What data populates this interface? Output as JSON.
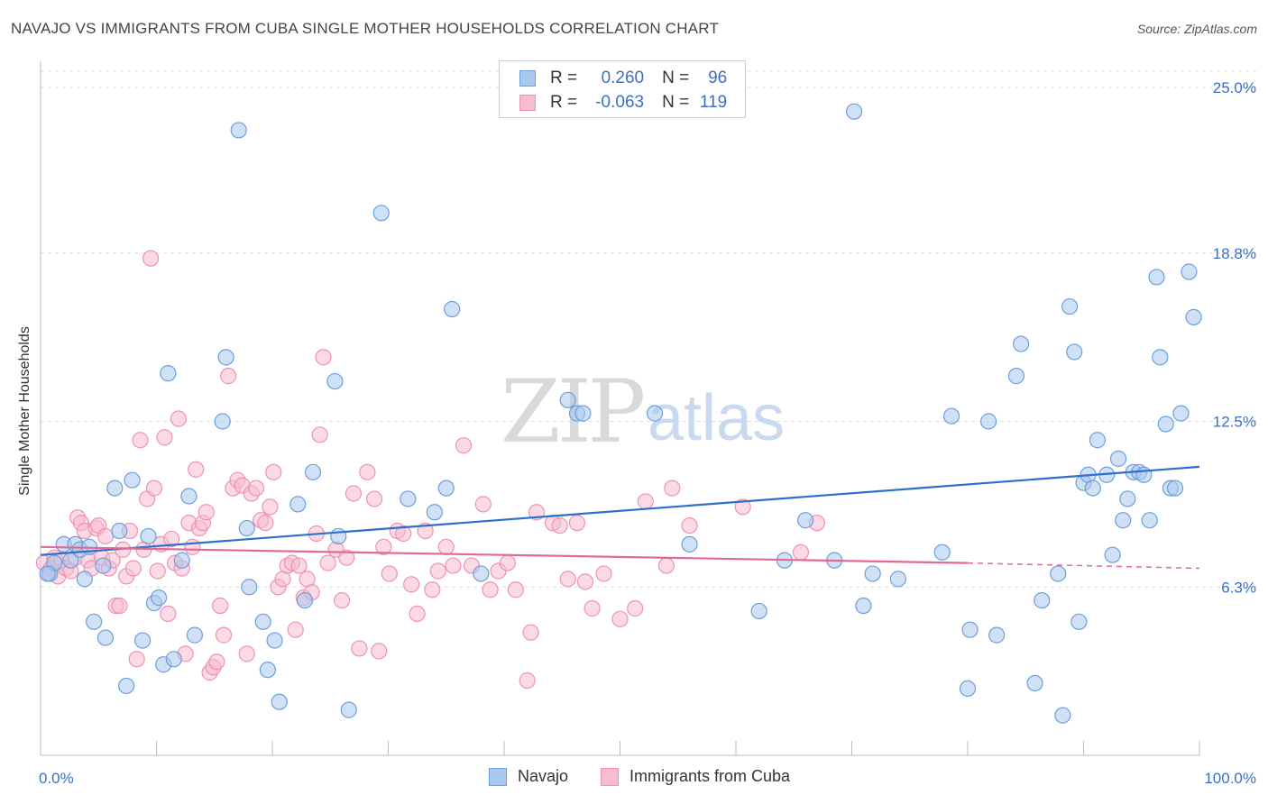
{
  "title": "NAVAJO VS IMMIGRANTS FROM CUBA SINGLE MOTHER HOUSEHOLDS CORRELATION CHART",
  "source": "Source: ZipAtlas.com",
  "watermark": {
    "zip": "ZIP",
    "atlas": "atlas"
  },
  "legend": {
    "rows": [
      {
        "r_label": "R =",
        "r_value": "0.260",
        "n_label": "N =",
        "n_value": "96"
      },
      {
        "r_label": "R =",
        "r_value": "-0.063",
        "n_label": "N =",
        "n_value": "119"
      }
    ]
  },
  "colors": {
    "navajo_fill": "#a9c8ef",
    "navajo_stroke": "#6d9fdc",
    "navajo_line": "#2d6fcc",
    "cuba_fill": "#f7bcd0",
    "cuba_stroke": "#ee93b3",
    "cuba_line": "#e0699a",
    "axis_text": "#3a6fc7",
    "grid": "#dddddd"
  },
  "chart_data": {
    "type": "scatter",
    "title": "NAVAJO VS IMMIGRANTS FROM CUBA SINGLE MOTHER HOUSEHOLDS CORRELATION CHART",
    "xlabel": "",
    "ylabel": "Single Mother Households",
    "xlim": [
      0,
      100
    ],
    "ylim": [
      0,
      25.6
    ],
    "x_tick_labels": [
      "0.0%",
      "100.0%"
    ],
    "y_ticks": [
      6.3,
      12.5,
      18.8,
      25.0
    ],
    "y_tick_labels": [
      "6.3%",
      "12.5%",
      "18.8%",
      "25.0%"
    ],
    "grid": true,
    "legend_position": "top-center",
    "series": [
      {
        "name": "Navajo",
        "r": 0.26,
        "n": 96,
        "trend": {
          "x": [
            0,
            100
          ],
          "y": [
            7.5,
            10.8
          ],
          "dashed_from": null
        },
        "points": [
          [
            0.8,
            6.8
          ],
          [
            1.2,
            7.2
          ],
          [
            2.0,
            7.9
          ],
          [
            2.6,
            7.3
          ],
          [
            3.0,
            7.9
          ],
          [
            3.4,
            7.7
          ],
          [
            3.8,
            6.6
          ],
          [
            4.2,
            7.8
          ],
          [
            4.6,
            5.0
          ],
          [
            5.4,
            7.1
          ],
          [
            5.6,
            4.4
          ],
          [
            6.4,
            10.0
          ],
          [
            6.8,
            8.4
          ],
          [
            7.4,
            2.6
          ],
          [
            7.9,
            10.3
          ],
          [
            8.8,
            4.3
          ],
          [
            9.3,
            8.2
          ],
          [
            9.8,
            5.7
          ],
          [
            10.2,
            5.9
          ],
          [
            10.6,
            3.4
          ],
          [
            11.0,
            14.3
          ],
          [
            11.5,
            3.6
          ],
          [
            12.2,
            7.3
          ],
          [
            12.8,
            9.7
          ],
          [
            13.3,
            4.5
          ],
          [
            15.7,
            12.5
          ],
          [
            16.0,
            14.9
          ],
          [
            17.1,
            23.4
          ],
          [
            17.8,
            8.5
          ],
          [
            18.0,
            6.3
          ],
          [
            19.2,
            5.0
          ],
          [
            19.6,
            3.2
          ],
          [
            20.2,
            4.3
          ],
          [
            20.6,
            2.0
          ],
          [
            22.2,
            9.4
          ],
          [
            22.8,
            5.8
          ],
          [
            23.5,
            10.6
          ],
          [
            25.4,
            14.0
          ],
          [
            25.7,
            8.2
          ],
          [
            26.6,
            1.7
          ],
          [
            29.4,
            20.3
          ],
          [
            31.7,
            9.6
          ],
          [
            34.0,
            9.1
          ],
          [
            35.0,
            10.0
          ],
          [
            35.5,
            16.7
          ],
          [
            38.0,
            6.8
          ],
          [
            45.5,
            13.3
          ],
          [
            46.3,
            12.8
          ],
          [
            46.8,
            12.8
          ],
          [
            53.0,
            12.8
          ],
          [
            56.0,
            7.9
          ],
          [
            62.0,
            5.4
          ],
          [
            64.2,
            7.3
          ],
          [
            66.0,
            8.8
          ],
          [
            68.5,
            7.3
          ],
          [
            70.2,
            24.1
          ],
          [
            71.0,
            5.6
          ],
          [
            71.8,
            6.8
          ],
          [
            74.0,
            6.6
          ],
          [
            77.8,
            7.6
          ],
          [
            78.6,
            12.7
          ],
          [
            80.0,
            2.5
          ],
          [
            80.2,
            4.7
          ],
          [
            81.8,
            12.5
          ],
          [
            82.5,
            4.5
          ],
          [
            84.2,
            14.2
          ],
          [
            84.6,
            15.4
          ],
          [
            85.8,
            2.7
          ],
          [
            86.4,
            5.8
          ],
          [
            87.8,
            6.8
          ],
          [
            88.2,
            1.5
          ],
          [
            88.8,
            16.8
          ],
          [
            89.2,
            15.1
          ],
          [
            89.6,
            5.0
          ],
          [
            90.0,
            10.2
          ],
          [
            90.4,
            10.5
          ],
          [
            90.8,
            10.0
          ],
          [
            91.2,
            11.8
          ],
          [
            92.0,
            10.5
          ],
          [
            92.5,
            7.5
          ],
          [
            93.0,
            11.1
          ],
          [
            93.4,
            8.8
          ],
          [
            93.8,
            9.6
          ],
          [
            94.3,
            10.6
          ],
          [
            94.8,
            10.6
          ],
          [
            95.2,
            10.5
          ],
          [
            95.7,
            8.8
          ],
          [
            96.3,
            17.9
          ],
          [
            96.6,
            14.9
          ],
          [
            97.1,
            12.4
          ],
          [
            97.5,
            10.0
          ],
          [
            97.9,
            10.0
          ],
          [
            98.4,
            12.8
          ],
          [
            99.1,
            18.1
          ],
          [
            99.5,
            16.4
          ],
          [
            0.6,
            6.8
          ]
        ]
      },
      {
        "name": "Immigrants from Cuba",
        "r": -0.063,
        "n": 119,
        "trend": {
          "x": [
            0,
            80
          ],
          "y": [
            7.8,
            7.2
          ],
          "dashed_from": 80,
          "dashed_to": [
            100,
            7.0
          ]
        },
        "points": [
          [
            0.3,
            7.2
          ],
          [
            0.6,
            6.8
          ],
          [
            0.9,
            7.0
          ],
          [
            1.2,
            7.4
          ],
          [
            1.5,
            6.7
          ],
          [
            1.8,
            7.3
          ],
          [
            2.2,
            7.0
          ],
          [
            2.6,
            6.9
          ],
          [
            3.0,
            7.4
          ],
          [
            3.2,
            8.9
          ],
          [
            3.5,
            8.7
          ],
          [
            3.8,
            8.4
          ],
          [
            4.1,
            7.3
          ],
          [
            4.4,
            7.0
          ],
          [
            4.8,
            8.5
          ],
          [
            5.0,
            8.6
          ],
          [
            5.3,
            7.4
          ],
          [
            5.6,
            8.2
          ],
          [
            5.9,
            7.0
          ],
          [
            6.2,
            7.3
          ],
          [
            6.5,
            5.6
          ],
          [
            6.8,
            5.6
          ],
          [
            7.1,
            7.7
          ],
          [
            7.4,
            6.7
          ],
          [
            7.7,
            8.4
          ],
          [
            8.0,
            7.0
          ],
          [
            8.3,
            3.6
          ],
          [
            8.6,
            11.8
          ],
          [
            8.9,
            7.7
          ],
          [
            9.2,
            9.6
          ],
          [
            9.5,
            18.6
          ],
          [
            9.8,
            10.0
          ],
          [
            10.1,
            6.9
          ],
          [
            10.4,
            7.9
          ],
          [
            10.7,
            11.9
          ],
          [
            11.0,
            5.3
          ],
          [
            11.3,
            8.1
          ],
          [
            11.6,
            7.2
          ],
          [
            11.9,
            12.6
          ],
          [
            12.2,
            7.0
          ],
          [
            12.5,
            3.8
          ],
          [
            12.8,
            8.7
          ],
          [
            13.1,
            7.8
          ],
          [
            13.4,
            10.7
          ],
          [
            13.7,
            8.5
          ],
          [
            14.0,
            8.7
          ],
          [
            14.3,
            9.1
          ],
          [
            14.6,
            3.1
          ],
          [
            14.9,
            3.3
          ],
          [
            15.2,
            3.5
          ],
          [
            15.5,
            5.6
          ],
          [
            15.8,
            4.5
          ],
          [
            16.2,
            14.2
          ],
          [
            16.6,
            10.0
          ],
          [
            17.0,
            10.3
          ],
          [
            17.4,
            10.1
          ],
          [
            17.8,
            3.8
          ],
          [
            18.2,
            9.8
          ],
          [
            18.6,
            10.0
          ],
          [
            19.0,
            8.8
          ],
          [
            19.4,
            8.7
          ],
          [
            19.8,
            9.3
          ],
          [
            20.1,
            10.6
          ],
          [
            20.5,
            6.3
          ],
          [
            20.9,
            6.6
          ],
          [
            21.3,
            7.1
          ],
          [
            21.7,
            7.2
          ],
          [
            22.0,
            4.7
          ],
          [
            22.3,
            7.1
          ],
          [
            22.7,
            5.9
          ],
          [
            23.0,
            6.6
          ],
          [
            23.4,
            6.1
          ],
          [
            23.8,
            8.3
          ],
          [
            24.1,
            12.0
          ],
          [
            24.4,
            14.9
          ],
          [
            24.8,
            7.2
          ],
          [
            25.5,
            7.7
          ],
          [
            26.0,
            5.8
          ],
          [
            26.4,
            7.4
          ],
          [
            27.0,
            9.8
          ],
          [
            27.5,
            4.0
          ],
          [
            28.2,
            10.6
          ],
          [
            28.8,
            9.6
          ],
          [
            29.2,
            3.9
          ],
          [
            29.6,
            7.8
          ],
          [
            30.1,
            6.8
          ],
          [
            30.8,
            8.4
          ],
          [
            31.3,
            8.3
          ],
          [
            32.0,
            6.4
          ],
          [
            32.5,
            5.3
          ],
          [
            33.2,
            8.4
          ],
          [
            33.8,
            6.2
          ],
          [
            34.3,
            6.9
          ],
          [
            35.0,
            7.8
          ],
          [
            35.6,
            7.1
          ],
          [
            36.5,
            11.6
          ],
          [
            37.2,
            7.1
          ],
          [
            38.2,
            9.4
          ],
          [
            38.8,
            6.2
          ],
          [
            39.5,
            6.9
          ],
          [
            40.3,
            7.2
          ],
          [
            41.0,
            6.2
          ],
          [
            42.0,
            2.8
          ],
          [
            42.3,
            4.6
          ],
          [
            42.8,
            9.1
          ],
          [
            44.2,
            8.7
          ],
          [
            44.8,
            8.6
          ],
          [
            45.5,
            6.6
          ],
          [
            46.3,
            8.7
          ],
          [
            47.0,
            6.5
          ],
          [
            47.6,
            5.5
          ],
          [
            48.6,
            6.8
          ],
          [
            50.0,
            5.1
          ],
          [
            51.3,
            5.5
          ],
          [
            52.2,
            9.5
          ],
          [
            54.0,
            7.1
          ],
          [
            54.5,
            10.0
          ],
          [
            56.0,
            8.6
          ],
          [
            60.6,
            9.3
          ],
          [
            65.6,
            7.6
          ],
          [
            67.0,
            8.7
          ]
        ]
      }
    ]
  },
  "bottom_legend": [
    {
      "label": "Navajo"
    },
    {
      "label": "Immigrants from Cuba"
    }
  ]
}
